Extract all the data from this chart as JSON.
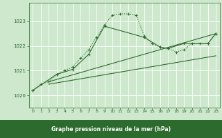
{
  "bg_color": "#cde8cd",
  "plot_bg_color": "#cde8cd",
  "footer_bg": "#2d6a2d",
  "grid_color": "#ffffff",
  "line_color": "#2d6a2d",
  "title": "Graphe pression niveau de la mer (hPa)",
  "xlim": [
    -0.5,
    23.5
  ],
  "ylim": [
    1019.5,
    1023.75
  ],
  "yticks": [
    1020,
    1021,
    1022,
    1023
  ],
  "xticks": [
    0,
    1,
    2,
    3,
    4,
    5,
    6,
    7,
    8,
    9,
    10,
    11,
    12,
    13,
    14,
    15,
    16,
    17,
    18,
    19,
    20,
    21,
    22,
    23
  ],
  "series_dotted": {
    "x": [
      0,
      1,
      2,
      3,
      4,
      5,
      6,
      7,
      8,
      9,
      10,
      11,
      12,
      13,
      14,
      15,
      16,
      17,
      18,
      19,
      20,
      21,
      22,
      23
    ],
    "y": [
      1020.2,
      1020.45,
      1020.55,
      1020.85,
      1021.0,
      1021.15,
      1021.5,
      1021.85,
      1022.35,
      1022.85,
      1023.25,
      1023.3,
      1023.3,
      1023.25,
      1022.4,
      1022.1,
      1021.95,
      1021.9,
      1021.75,
      1021.85,
      1022.1,
      1022.1,
      1022.1,
      1022.5
    ]
  },
  "series_solid": {
    "x": [
      0,
      3,
      5,
      7,
      9,
      14,
      16,
      17,
      19,
      22,
      23
    ],
    "y": [
      1020.2,
      1020.85,
      1021.05,
      1021.65,
      1022.8,
      1022.35,
      1021.95,
      1021.9,
      1022.1,
      1022.1,
      1022.5
    ]
  },
  "trend1": {
    "x": [
      2,
      23
    ],
    "y": [
      1020.55,
      1022.5
    ]
  },
  "trend2": {
    "x": [
      2,
      23
    ],
    "y": [
      1020.45,
      1021.6
    ]
  }
}
